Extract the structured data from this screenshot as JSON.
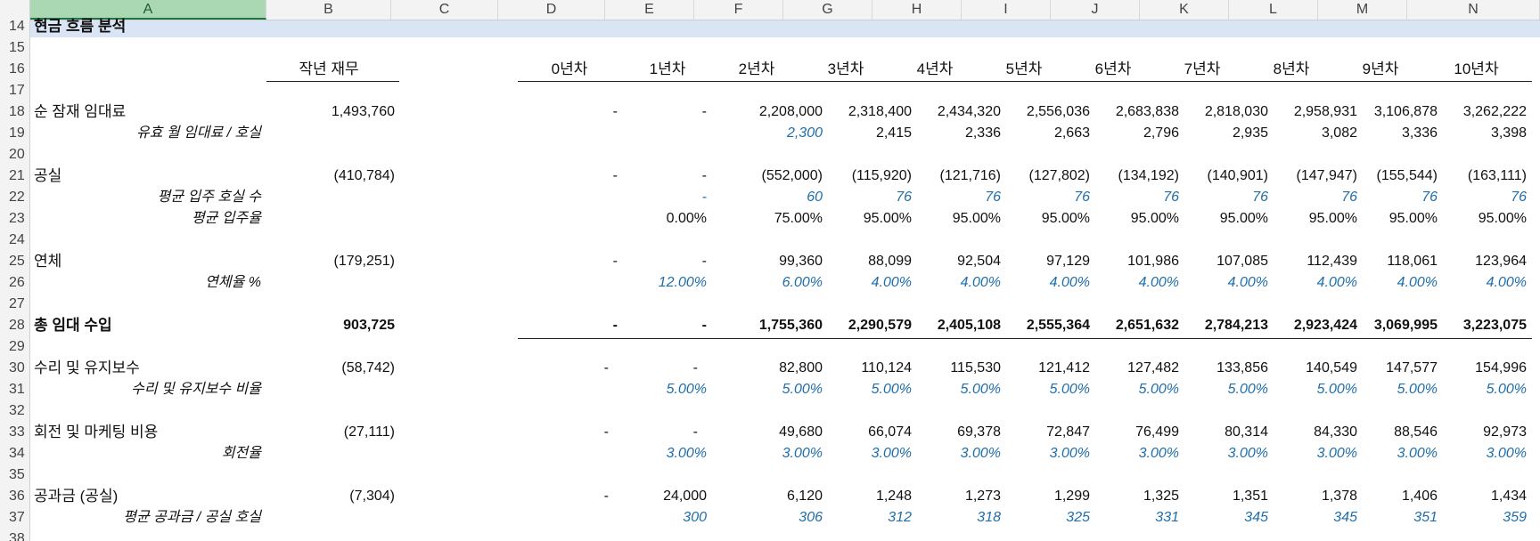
{
  "colors": {
    "accent": "#217346",
    "input_blue": "#1f6ea8",
    "section_band": "#d9e4f4"
  },
  "column_headers": [
    "A",
    "B",
    "C",
    "D",
    "E",
    "F",
    "G",
    "H",
    "I",
    "J",
    "K",
    "L",
    "M",
    "N"
  ],
  "row_numbers": [
    "14",
    "15",
    "16",
    "17",
    "18",
    "19",
    "20",
    "21",
    "22",
    "23",
    "24",
    "25",
    "26",
    "27",
    "28",
    "29",
    "30",
    "31",
    "32",
    "33",
    "34",
    "35",
    "36",
    "37",
    "38"
  ],
  "section_title": "현금 흐름 분석",
  "header": {
    "prior_year": "작년 재무",
    "years": [
      "0년차",
      "1년차",
      "2년차",
      "3년차",
      "4년차",
      "5년차",
      "6년차",
      "7년차",
      "8년차",
      "9년차",
      "10년차"
    ]
  },
  "rows": {
    "r18": {
      "label": "순 잠재 임대료",
      "prior": "1,493,760",
      "vals": [
        "-",
        "-",
        "2,208,000",
        "2,318,400",
        "2,434,320",
        "2,556,036",
        "2,683,838",
        "2,818,030",
        "2,958,931",
        "3,106,878",
        "3,262,222"
      ]
    },
    "r19": {
      "label": "유효 월 임대료 / 호실",
      "vals": [
        "2,300",
        "2,415",
        "2,336",
        "2,663",
        "2,796",
        "2,935",
        "3,082",
        "3,336",
        "3,398"
      ]
    },
    "r21": {
      "label": "공실",
      "prior": "(410,784)",
      "vals": [
        "-",
        "-",
        "(552,000)",
        "(115,920)",
        "(121,716)",
        "(127,802)",
        "(134,192)",
        "(140,901)",
        "(147,947)",
        "(155,544)",
        "(163,111)"
      ]
    },
    "r22": {
      "label": "평균 입주 호실 수",
      "vals": [
        "-",
        "60",
        "76",
        "76",
        "76",
        "76",
        "76",
        "76",
        "76",
        "76"
      ]
    },
    "r23": {
      "label": "평균 입주율",
      "vals": [
        "0.00%",
        "75.00%",
        "95.00%",
        "95.00%",
        "95.00%",
        "95.00%",
        "95.00%",
        "95.00%",
        "95.00%",
        "95.00%"
      ]
    },
    "r25": {
      "label": "연체",
      "prior": "(179,251)",
      "vals": [
        "-",
        "-",
        "99,360",
        "88,099",
        "92,504",
        "97,129",
        "101,986",
        "107,085",
        "112,439",
        "118,061",
        "123,964"
      ]
    },
    "r26": {
      "label": "연체율 %",
      "vals": [
        "12.00%",
        "6.00%",
        "4.00%",
        "4.00%",
        "4.00%",
        "4.00%",
        "4.00%",
        "4.00%",
        "4.00%",
        "4.00%"
      ]
    },
    "r28": {
      "label": "총 임대 수입",
      "prior": "903,725",
      "vals": [
        "-",
        "-",
        "1,755,360",
        "2,290,579",
        "2,405,108",
        "2,555,364",
        "2,651,632",
        "2,784,213",
        "2,923,424",
        "3,069,995",
        "3,223,075"
      ]
    },
    "r30": {
      "label": "수리 및 유지보수",
      "prior": "(58,742)",
      "vals": [
        "-",
        "-",
        "82,800",
        "110,124",
        "115,530",
        "121,412",
        "127,482",
        "133,856",
        "140,549",
        "147,577",
        "154,996"
      ]
    },
    "r31": {
      "label": "수리 및 유지보수 비율",
      "vals": [
        "5.00%",
        "5.00%",
        "5.00%",
        "5.00%",
        "5.00%",
        "5.00%",
        "5.00%",
        "5.00%",
        "5.00%",
        "5.00%"
      ]
    },
    "r33": {
      "label": "회전 및 마케팅 비용",
      "prior": "(27,111)",
      "vals": [
        "-",
        "-",
        "49,680",
        "66,074",
        "69,378",
        "72,847",
        "76,499",
        "80,314",
        "84,330",
        "88,546",
        "92,973"
      ]
    },
    "r34": {
      "label": "회전율",
      "vals": [
        "3.00%",
        "3.00%",
        "3.00%",
        "3.00%",
        "3.00%",
        "3.00%",
        "3.00%",
        "3.00%",
        "3.00%",
        "3.00%"
      ]
    },
    "r36": {
      "label": "공과금 (공실)",
      "prior": "(7,304)",
      "vals": [
        "-",
        "24,000",
        "6,120",
        "1,248",
        "1,273",
        "1,299",
        "1,325",
        "1,351",
        "1,378",
        "1,406",
        "1,434"
      ]
    },
    "r37": {
      "label": "평균 공과금 / 공실 호실",
      "vals": [
        "300",
        "306",
        "312",
        "318",
        "325",
        "331",
        "345",
        "345",
        "351",
        "359"
      ]
    }
  }
}
